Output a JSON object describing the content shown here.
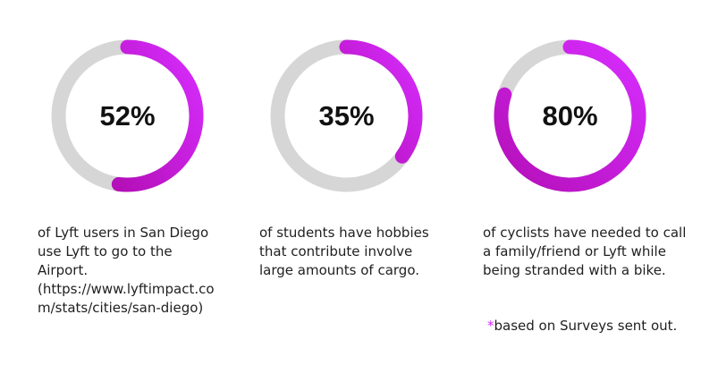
{
  "colors": {
    "track": "#d6d6d6",
    "arc_start": "#b40fb8",
    "arc_end": "#d72dff",
    "accent_star": "#d62bff"
  },
  "chart_data": [
    {
      "type": "pie",
      "values": [
        52,
        48
      ],
      "label": "52%",
      "caption": "of Lyft users in San Diego\nuse Lyft to go to the\nAirport.\n(https://www.lyftimpact.co\nm/stats/cities/san-diego)"
    },
    {
      "type": "pie",
      "values": [
        35,
        65
      ],
      "label": "35%",
      "caption": "of students have hobbies\nthat contribute involve\nlarge amounts of cargo."
    },
    {
      "type": "pie",
      "values": [
        80,
        20
      ],
      "label": "80%",
      "caption": "of cyclists have needed to call\na family/friend or Lyft while\nbeing stranded with a bike."
    }
  ],
  "footnote": {
    "marker": "*",
    "text": "based on Surveys sent out."
  }
}
